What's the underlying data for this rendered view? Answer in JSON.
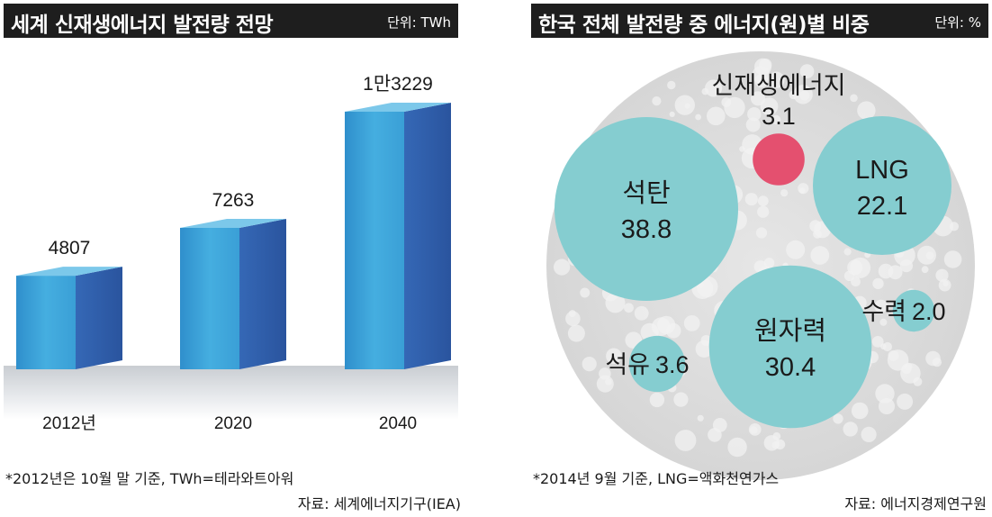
{
  "left_chart": {
    "title": "세계 신재생에너지 발전량 전망",
    "unit": "단위: TWh",
    "note": "*2012년은 10월 말 기준, TWh=테라와트아워",
    "source": "자료: 세계에너지기구(IEA)"
  },
  "right_chart": {
    "title": "한국 전체 발전량 중 에너지(원)별 비중",
    "unit": "단위: %",
    "note": "*2014년 9월 기준, LNG=액화천연가스",
    "source": "자료: 에너지경제연구원"
  },
  "chart_data": [
    {
      "type": "bar",
      "title": "세계 신재생에너지 발전량 전망",
      "unit": "단위: TWh",
      "categories": [
        "2012년",
        "2020",
        "2040"
      ],
      "values": [
        4807,
        7263,
        13229
      ],
      "value_labels": [
        "4807",
        "7263",
        "1만3229"
      ],
      "ylim": [
        0,
        13229
      ],
      "grid": false,
      "colors": {
        "front": "#3a9fd4",
        "side": "#2f5fae",
        "top": "#7cc8ea"
      }
    },
    {
      "type": "bubble",
      "title": "한국 전체 발전량 중 에너지(원)별 비중",
      "unit": "단위: %",
      "items": [
        {
          "name": "석탄",
          "value": 38.8,
          "value_label": "38.8",
          "color": "#85cdd0"
        },
        {
          "name": "원자력",
          "value": 30.4,
          "value_label": "30.4",
          "color": "#85cdd0"
        },
        {
          "name": "LNG",
          "value": 22.1,
          "value_label": "22.1",
          "color": "#85cdd0"
        },
        {
          "name": "석유",
          "value": 3.6,
          "value_label": "3.6",
          "color": "#85cdd0"
        },
        {
          "name": "신재생에너지",
          "value": 3.1,
          "value_label": "3.1",
          "color": "#e4506f"
        },
        {
          "name": "수력",
          "value": 2.0,
          "value_label": "2.0",
          "color": "#85cdd0"
        }
      ]
    }
  ]
}
